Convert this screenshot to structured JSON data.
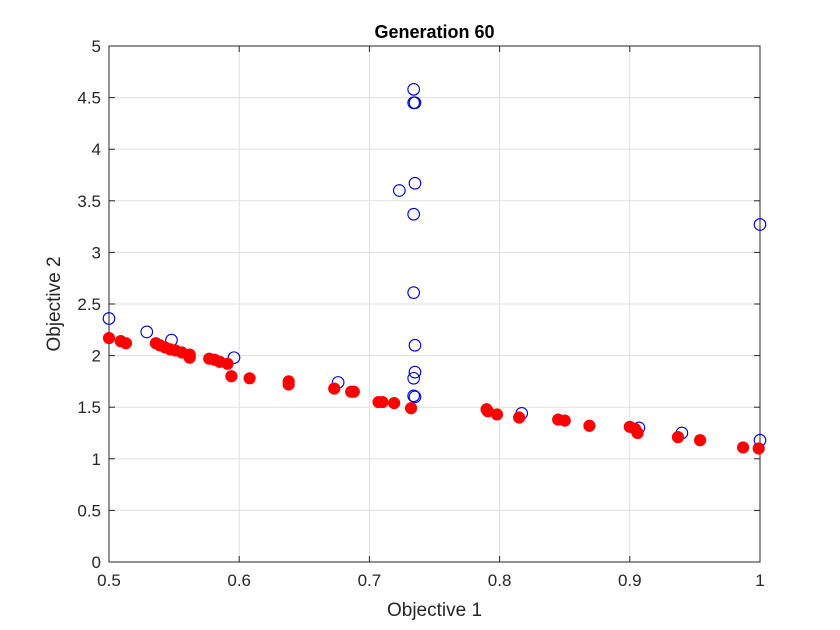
{
  "chart_data": {
    "type": "scatter",
    "title": "Generation 60",
    "xlabel": "Objective 1",
    "ylabel": "Objective 2",
    "xlim": [
      0.5,
      1
    ],
    "ylim": [
      0,
      5
    ],
    "xticks": [
      0.5,
      0.6,
      0.7,
      0.8,
      0.9,
      1
    ],
    "xtick_labels": [
      "0.5",
      "0.6",
      "0.7",
      "0.8",
      "0.9",
      "1"
    ],
    "yticks": [
      0,
      0.5,
      1,
      1.5,
      2,
      2.5,
      3,
      3.5,
      4,
      4.5,
      5
    ],
    "ytick_labels": [
      "0",
      "0.5",
      "1",
      "1.5",
      "2",
      "2.5",
      "3",
      "3.5",
      "4",
      "4.5",
      "5"
    ],
    "grid": true,
    "legend": "none",
    "series": [
      {
        "marker": "open-circle",
        "color": "#0000cc",
        "points": [
          [
            0.5,
            2.36
          ],
          [
            0.529,
            2.23
          ],
          [
            0.548,
            2.15
          ],
          [
            0.596,
            1.98
          ],
          [
            0.676,
            1.74
          ],
          [
            0.723,
            3.6
          ],
          [
            0.734,
            4.58
          ],
          [
            0.734,
            4.45
          ],
          [
            0.735,
            4.45
          ],
          [
            0.735,
            3.67
          ],
          [
            0.734,
            3.37
          ],
          [
            0.734,
            2.61
          ],
          [
            0.735,
            2.1
          ],
          [
            0.735,
            1.84
          ],
          [
            0.734,
            1.78
          ],
          [
            0.734,
            1.61
          ],
          [
            0.735,
            1.6
          ],
          [
            0.817,
            1.44
          ],
          [
            0.907,
            1.3
          ],
          [
            0.94,
            1.25
          ],
          [
            1.0,
            3.27
          ],
          [
            1.0,
            1.18
          ]
        ]
      },
      {
        "marker": "filled-circle",
        "color": "#ff0000",
        "points": [
          [
            0.5,
            2.17
          ],
          [
            0.509,
            2.14
          ],
          [
            0.513,
            2.12
          ],
          [
            0.536,
            2.12
          ],
          [
            0.539,
            2.1
          ],
          [
            0.543,
            2.08
          ],
          [
            0.547,
            2.06
          ],
          [
            0.551,
            2.05
          ],
          [
            0.556,
            2.03
          ],
          [
            0.562,
            2.01
          ],
          [
            0.562,
            1.98
          ],
          [
            0.577,
            1.97
          ],
          [
            0.581,
            1.96
          ],
          [
            0.585,
            1.94
          ],
          [
            0.591,
            1.92
          ],
          [
            0.594,
            1.8
          ],
          [
            0.608,
            1.78
          ],
          [
            0.638,
            1.75
          ],
          [
            0.638,
            1.72
          ],
          [
            0.673,
            1.68
          ],
          [
            0.686,
            1.65
          ],
          [
            0.688,
            1.65
          ],
          [
            0.707,
            1.55
          ],
          [
            0.71,
            1.55
          ],
          [
            0.719,
            1.54
          ],
          [
            0.732,
            1.49
          ],
          [
            0.79,
            1.48
          ],
          [
            0.791,
            1.46
          ],
          [
            0.798,
            1.43
          ],
          [
            0.815,
            1.4
          ],
          [
            0.845,
            1.38
          ],
          [
            0.85,
            1.37
          ],
          [
            0.869,
            1.32
          ],
          [
            0.9,
            1.31
          ],
          [
            0.904,
            1.29
          ],
          [
            0.906,
            1.25
          ],
          [
            0.937,
            1.21
          ],
          [
            0.954,
            1.18
          ],
          [
            0.987,
            1.11
          ],
          [
            0.999,
            1.1
          ]
        ]
      }
    ]
  }
}
